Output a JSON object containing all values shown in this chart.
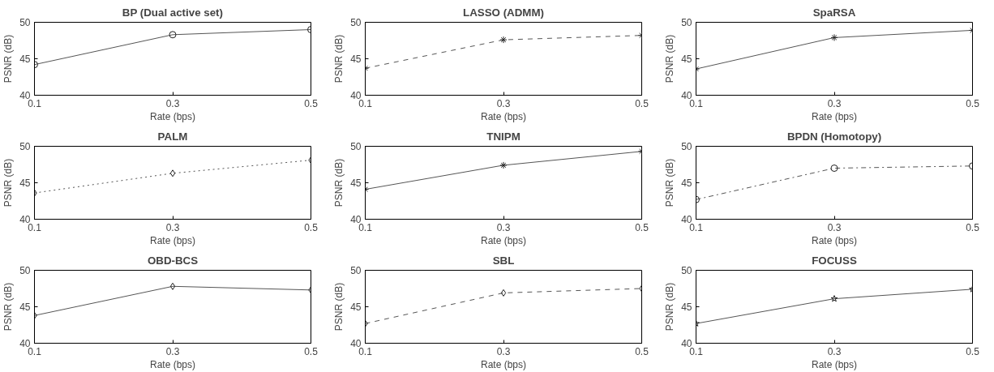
{
  "chart_data": [
    {
      "type": "line",
      "title": "BP (Dual active set)",
      "xlabel": "Rate (bps)",
      "ylabel": "PSNR (dB)",
      "x": [
        0.1,
        0.3,
        0.5
      ],
      "series": [
        {
          "color": "#555555",
          "values": [
            44.2,
            48.3,
            49.0
          ]
        }
      ],
      "xlim": [
        0.1,
        0.5
      ],
      "ylim": [
        40,
        50
      ],
      "xticks": [
        0.1,
        0.3,
        0.5
      ],
      "yticks": [
        40,
        45,
        50
      ],
      "marker": "circle",
      "line_style": "solid"
    },
    {
      "type": "line",
      "title": "LASSO (ADMM)",
      "xlabel": "Rate (bps)",
      "ylabel": "PSNR (dB)",
      "x": [
        0.1,
        0.3,
        0.5
      ],
      "series": [
        {
          "color": "#555555",
          "values": [
            43.7,
            47.6,
            48.2
          ]
        }
      ],
      "xlim": [
        0.1,
        0.5
      ],
      "ylim": [
        40,
        50
      ],
      "xticks": [
        0.1,
        0.3,
        0.5
      ],
      "yticks": [
        40,
        45,
        50
      ],
      "marker": "cross",
      "line_style": "dashed"
    },
    {
      "type": "line",
      "title": "SpaRSA",
      "xlabel": "Rate (bps)",
      "ylabel": "PSNR (dB)",
      "x": [
        0.1,
        0.3,
        0.5
      ],
      "series": [
        {
          "color": "#555555",
          "values": [
            43.6,
            47.9,
            48.9
          ]
        }
      ],
      "xlim": [
        0.1,
        0.5
      ],
      "ylim": [
        40,
        50
      ],
      "xticks": [
        0.1,
        0.3,
        0.5
      ],
      "yticks": [
        40,
        45,
        50
      ],
      "marker": "cross",
      "line_style": "solid"
    },
    {
      "type": "line",
      "title": "PALM",
      "xlabel": "Rate (bps)",
      "ylabel": "PSNR (dB)",
      "x": [
        0.1,
        0.3,
        0.5
      ],
      "series": [
        {
          "color": "#555555",
          "values": [
            43.6,
            46.3,
            48.1
          ]
        }
      ],
      "xlim": [
        0.1,
        0.5
      ],
      "ylim": [
        40,
        50
      ],
      "xticks": [
        0.1,
        0.3,
        0.5
      ],
      "yticks": [
        40,
        45,
        50
      ],
      "marker": "diamond",
      "line_style": "dotted"
    },
    {
      "type": "line",
      "title": "TNIPM",
      "xlabel": "Rate (bps)",
      "ylabel": "PSNR (dB)",
      "x": [
        0.1,
        0.3,
        0.5
      ],
      "series": [
        {
          "color": "#555555",
          "values": [
            44.1,
            47.4,
            49.3
          ]
        }
      ],
      "xlim": [
        0.1,
        0.5
      ],
      "ylim": [
        40,
        50
      ],
      "xticks": [
        0.1,
        0.3,
        0.5
      ],
      "yticks": [
        40,
        45,
        50
      ],
      "marker": "cross",
      "line_style": "solid"
    },
    {
      "type": "line",
      "title": "BPDN (Homotopy)",
      "xlabel": "Rate (bps)",
      "ylabel": "PSNR (dB)",
      "x": [
        0.1,
        0.3,
        0.5
      ],
      "series": [
        {
          "color": "#555555",
          "values": [
            42.7,
            47.0,
            47.3
          ]
        }
      ],
      "xlim": [
        0.1,
        0.5
      ],
      "ylim": [
        40,
        50
      ],
      "xticks": [
        0.1,
        0.3,
        0.5
      ],
      "yticks": [
        40,
        45,
        50
      ],
      "marker": "circle",
      "line_style": "dashdot"
    },
    {
      "type": "line",
      "title": "OBD-BCS",
      "xlabel": "Rate (bps)",
      "ylabel": "PSNR (dB)",
      "x": [
        0.1,
        0.3,
        0.5
      ],
      "series": [
        {
          "color": "#555555",
          "values": [
            43.8,
            47.8,
            47.3
          ]
        }
      ],
      "xlim": [
        0.1,
        0.5
      ],
      "ylim": [
        40,
        50
      ],
      "xticks": [
        0.1,
        0.3,
        0.5
      ],
      "yticks": [
        40,
        45,
        50
      ],
      "marker": "diamond",
      "line_style": "solid"
    },
    {
      "type": "line",
      "title": "SBL",
      "xlabel": "Rate (bps)",
      "ylabel": "PSNR (dB)",
      "x": [
        0.1,
        0.3,
        0.5
      ],
      "series": [
        {
          "color": "#555555",
          "values": [
            42.7,
            46.9,
            47.5
          ]
        }
      ],
      "xlim": [
        0.1,
        0.5
      ],
      "ylim": [
        40,
        50
      ],
      "xticks": [
        0.1,
        0.3,
        0.5
      ],
      "yticks": [
        40,
        45,
        50
      ],
      "marker": "diamond",
      "line_style": "dashed"
    },
    {
      "type": "line",
      "title": "FOCUSS",
      "xlabel": "Rate (bps)",
      "ylabel": "PSNR (dB)",
      "x": [
        0.1,
        0.3,
        0.5
      ],
      "series": [
        {
          "color": "#555555",
          "values": [
            42.7,
            46.1,
            47.4
          ]
        }
      ],
      "xlim": [
        0.1,
        0.5
      ],
      "ylim": [
        40,
        50
      ],
      "xticks": [
        0.1,
        0.3,
        0.5
      ],
      "yticks": [
        40,
        45,
        50
      ],
      "marker": "star",
      "line_style": "solid"
    }
  ]
}
